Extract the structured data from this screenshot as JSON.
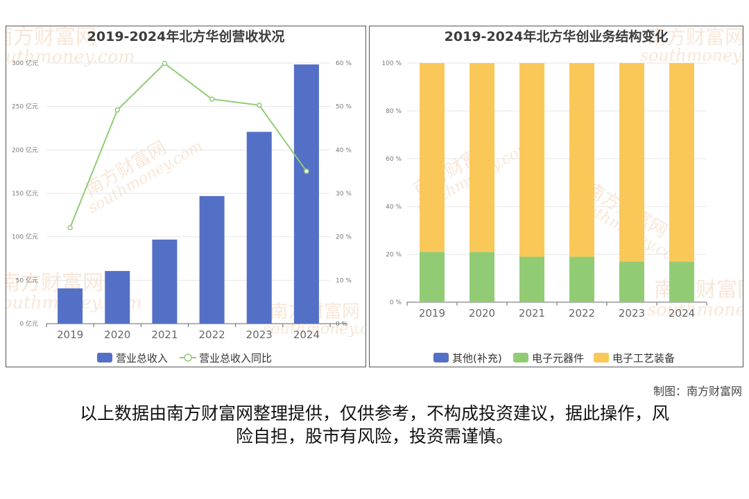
{
  "chart_data": [
    {
      "type": "bar+line",
      "title": "2019-2024年北方华创营收状况",
      "categories": [
        "2019",
        "2020",
        "2021",
        "2022",
        "2023",
        "2024"
      ],
      "series": [
        {
          "name": "营业总收入",
          "type": "bar",
          "axis": "left",
          "unit": "亿元",
          "values": [
            40.6,
            60.6,
            96.8,
            146.9,
            220.8,
            298.4
          ],
          "color": "#5470c6"
        },
        {
          "name": "营业总收入同比",
          "type": "line",
          "axis": "right",
          "unit": "%",
          "values": [
            22.1,
            49.2,
            59.9,
            51.7,
            50.3,
            35.1
          ],
          "color": "#91cc75"
        }
      ],
      "left_axis": {
        "ylim": [
          0,
          300
        ],
        "ticks": [
          "0 亿元",
          "50 亿元",
          "100 亿元",
          "150 亿元",
          "200 亿元",
          "250 亿元",
          "300 亿元"
        ]
      },
      "right_axis": {
        "ylim": [
          0,
          60
        ],
        "ticks": [
          "0 %",
          "10 %",
          "20 %",
          "30 %",
          "40 %",
          "50 %",
          "60 %"
        ]
      },
      "legend": "bottom-center",
      "grid": true
    },
    {
      "type": "stacked-bar-percent",
      "title": "2019-2024年北方华创业务结构变化",
      "categories": [
        "2019",
        "2020",
        "2021",
        "2022",
        "2023",
        "2024"
      ],
      "series": [
        {
          "name": "其他(补充)",
          "values": [
            0,
            0,
            0,
            0,
            0,
            0
          ],
          "color": "#5470c6"
        },
        {
          "name": "电子元器件",
          "values": [
            21,
            21,
            19,
            19,
            17,
            17
          ],
          "color": "#91cc75"
        },
        {
          "name": "电子工艺装备",
          "values": [
            79,
            79,
            81,
            81,
            83,
            83
          ],
          "color": "#fac858"
        }
      ],
      "y_axis": {
        "ylim": [
          0,
          100
        ],
        "ticks": [
          "0 %",
          "20 %",
          "40 %",
          "60 %",
          "80 %",
          "100 %"
        ]
      },
      "legend": "bottom-center",
      "grid": true
    }
  ],
  "watermark": {
    "cn": "南方财富网",
    "en": "southmoney.com"
  },
  "credit": "制图：南方财富网",
  "disclaimer_line1": "以上数据由南方财富网整理提供，仅供参考，不构成投资建议，据此操作，风",
  "disclaimer_line2": "险自担，股市有风险，投资需谨慎。"
}
